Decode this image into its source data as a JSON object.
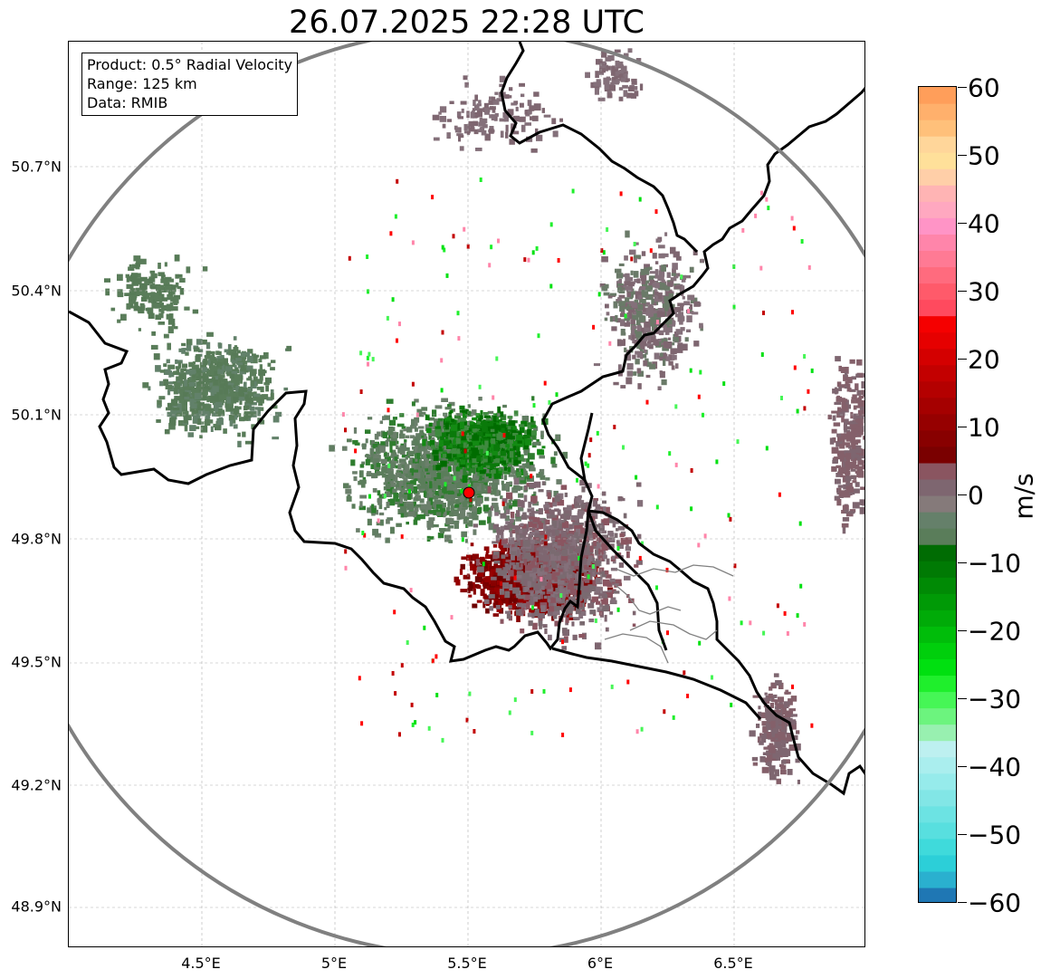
{
  "title": "26.07.2025 22:28 UTC",
  "info": {
    "product": "Product: 0.5° Radial Velocity",
    "range": "Range: 125 km",
    "data": "Data: RMIB"
  },
  "map": {
    "lon_range": [
      4.0,
      7.0
    ],
    "lat_range": [
      48.8,
      50.98
    ],
    "radar_site": {
      "lon": 5.5,
      "lat": 49.91
    },
    "range_km": 125,
    "grid": true,
    "lat_ticks": [
      "50.7°N",
      "50.4°N",
      "50.1°N",
      "49.8°N",
      "49.5°N",
      "49.2°N",
      "48.9°N"
    ],
    "lon_ticks": [
      "4.5°E",
      "5°E",
      "5.5°E",
      "6°E",
      "6.5°E"
    ],
    "colors": {
      "range_ring": "#808080",
      "border": "#000000",
      "admin_border": "#808080",
      "radar_marker": "#ff0000"
    }
  },
  "colorbar": {
    "label": "m/s",
    "min": -60,
    "max": 60,
    "ticks": [
      "60",
      "50",
      "40",
      "30",
      "20",
      "10",
      "0",
      "−10",
      "−20",
      "−30",
      "−40",
      "−50",
      "−60"
    ],
    "colors_bottom_to_top": [
      "#1f77b4",
      "#2ab0cf",
      "#2ccfd8",
      "#3fdadb",
      "#58dfdf",
      "#6ce3e3",
      "#82e6e6",
      "#96ebeb",
      "#aaeeee",
      "#bdf0f0",
      "#98f0b0",
      "#6cf47e",
      "#46f656",
      "#1fef2c",
      "#00e010",
      "#00cf0c",
      "#00bd0a",
      "#00ab08",
      "#009a06",
      "#008a05",
      "#007a04",
      "#006c03",
      "#5a7d5a",
      "#65806a",
      "#857a7a",
      "#7e6670",
      "#8a5560",
      "#7a0000",
      "#880000",
      "#960000",
      "#a50000",
      "#b40000",
      "#c30000",
      "#d40000",
      "#e60000",
      "#f50000",
      "#ff4a5e",
      "#ff5a6a",
      "#ff6b7e",
      "#ff7a94",
      "#ff85aa",
      "#ff94c6",
      "#ffa8c0",
      "#ffb4b4",
      "#ffcfa8",
      "#ffe09a",
      "#ffd69a",
      "#ffc07a",
      "#ffb06c",
      "#ff9e5a"
    ]
  }
}
